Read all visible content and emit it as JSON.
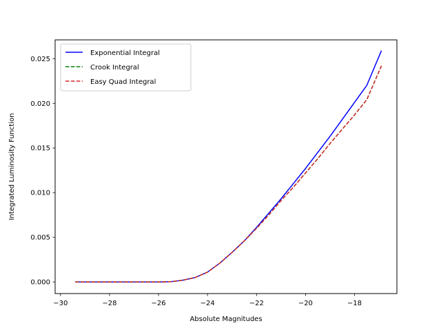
{
  "chart_data": {
    "type": "line",
    "title": "",
    "xlabel": "Absolute Magnitudes",
    "ylabel": "Integrated Luminosity Function",
    "xlim": [
      -30.22,
      -16.27
    ],
    "ylim": [
      -0.0013,
      0.0271
    ],
    "x_ticks": [
      -30,
      -28,
      -26,
      -24,
      -22,
      -20,
      -18
    ],
    "y_ticks": [
      0.0,
      0.005,
      0.01,
      0.015,
      0.02,
      0.025
    ],
    "x_tick_labels": [
      "−30",
      "−28",
      "−26",
      "−24",
      "−22",
      "−20",
      "−18"
    ],
    "y_tick_labels": [
      "0.000",
      "0.005",
      "0.010",
      "0.015",
      "0.020",
      "0.025"
    ],
    "grid": false,
    "legend_position": "upper-left",
    "series": [
      {
        "name": "Exponential Integral",
        "color": "#0000ff",
        "dash": "solid",
        "x": [
          -29.4,
          -28,
          -26,
          -25.5,
          -25,
          -24.5,
          -24,
          -23.5,
          -23,
          -22.5,
          -22,
          -21.5,
          -21,
          -20.5,
          -20,
          -19.5,
          -19,
          -18.5,
          -18,
          -17.5,
          -16.9
        ],
        "y": [
          0.0,
          0.0,
          0.0,
          3e-05,
          0.0002,
          0.0005,
          0.0011,
          0.0021,
          0.0033,
          0.0046,
          0.0061,
          0.0077,
          0.0093,
          0.011,
          0.0127,
          0.0145,
          0.0163,
          0.0182,
          0.0201,
          0.022,
          0.0259
        ]
      },
      {
        "name": "Crook Integral",
        "color": "#008000",
        "dash": "dashed",
        "x": [
          -29.4,
          -28,
          -26,
          -25.5,
          -25,
          -24.5,
          -24,
          -23.5,
          -23,
          -22.5,
          -22,
          -21.5,
          -21,
          -20.5,
          -20,
          -19.5,
          -19,
          -18.5,
          -18,
          -17.5,
          -16.9
        ],
        "y": [
          0.0,
          0.0,
          0.0,
          3e-05,
          0.0002,
          0.0005,
          0.0011,
          0.0021,
          0.0033,
          0.0046,
          0.006,
          0.0075,
          0.0091,
          0.0106,
          0.0122,
          0.0138,
          0.0155,
          0.0171,
          0.0187,
          0.0204,
          0.0242
        ]
      },
      {
        "name": "Easy Quad Integral",
        "color": "#d62728",
        "dash": "dashed",
        "x": [
          -29.4,
          -28,
          -26,
          -25.5,
          -25,
          -24.5,
          -24,
          -23.5,
          -23,
          -22.5,
          -22,
          -21.5,
          -21,
          -20.5,
          -20,
          -19.5,
          -19,
          -18.5,
          -18,
          -17.5,
          -16.9
        ],
        "y": [
          0.0,
          0.0,
          0.0,
          3e-05,
          0.0002,
          0.0005,
          0.0011,
          0.0021,
          0.0033,
          0.0046,
          0.006,
          0.0075,
          0.0091,
          0.0106,
          0.0122,
          0.0138,
          0.0155,
          0.0171,
          0.0187,
          0.0204,
          0.0242
        ]
      }
    ]
  }
}
